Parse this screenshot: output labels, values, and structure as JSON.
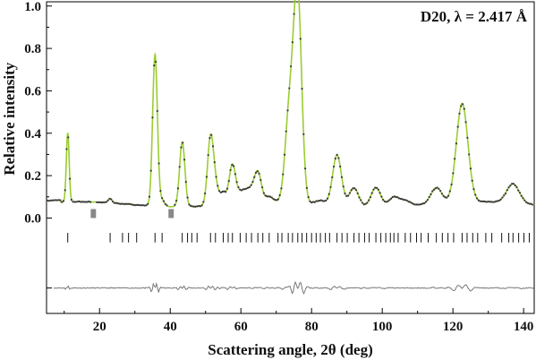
{
  "chart_data": {
    "type": "line",
    "title": "",
    "annotation": "D20, λ = 2.417 Å",
    "xlabel": "Scattering angle, 2θ (deg)",
    "ylabel": "Relative intensity",
    "xlim": [
      5,
      143
    ],
    "ylim": [
      -0.45,
      1.02
    ],
    "xticks": [
      20,
      40,
      60,
      80,
      100,
      120,
      140
    ],
    "yticks": [
      0.0,
      0.2,
      0.4,
      0.6,
      0.8,
      1.0
    ],
    "ytick_labels": [
      "0.0",
      "0.2",
      "0.4",
      "0.6",
      "0.8",
      "1.0"
    ],
    "grid": false,
    "background_level": 0.065,
    "difference_offset": -0.33,
    "excluded_regions": [
      [
        17.5,
        19.0
      ],
      [
        39.5,
        41.0
      ]
    ],
    "peaks": [
      {
        "x": 11.0,
        "y": 0.39
      },
      {
        "x": 23.0,
        "y": 0.085
      },
      {
        "x": 35.7,
        "y": 0.78
      },
      {
        "x": 37.7,
        "y": 0.095
      },
      {
        "x": 43.4,
        "y": 0.37
      },
      {
        "x": 51.4,
        "y": 0.38
      },
      {
        "x": 52.8,
        "y": 0.145
      },
      {
        "x": 55.0,
        "y": 0.12
      },
      {
        "x": 57.6,
        "y": 0.25
      },
      {
        "x": 59.8,
        "y": 0.11
      },
      {
        "x": 61.5,
        "y": 0.11
      },
      {
        "x": 63.0,
        "y": 0.11
      },
      {
        "x": 64.8,
        "y": 0.205
      },
      {
        "x": 68.0,
        "y": 0.09
      },
      {
        "x": 73.4,
        "y": 0.37
      },
      {
        "x": 74.6,
        "y": 0.27
      },
      {
        "x": 76.1,
        "y": 1.0
      },
      {
        "x": 82.5,
        "y": 0.08
      },
      {
        "x": 87.2,
        "y": 0.3
      },
      {
        "x": 92.0,
        "y": 0.15
      },
      {
        "x": 98.2,
        "y": 0.155
      },
      {
        "x": 103.3,
        "y": 0.11
      },
      {
        "x": 106.5,
        "y": 0.09
      },
      {
        "x": 115.3,
        "y": 0.14
      },
      {
        "x": 122.6,
        "y": 0.53
      },
      {
        "x": 137.0,
        "y": 0.155
      }
    ],
    "bragg_positions": [
      11.0,
      23.0,
      26.5,
      28.2,
      30.5,
      35.7,
      37.7,
      43.4,
      44.9,
      46.1,
      47.6,
      51.4,
      52.8,
      55.0,
      56.4,
      57.6,
      59.8,
      61.5,
      63.0,
      64.8,
      66.2,
      68.0,
      70.5,
      71.6,
      73.4,
      74.6,
      76.1,
      77.3,
      78.6,
      80.0,
      81.3,
      82.5,
      83.9,
      85.1,
      87.2,
      88.6,
      90.1,
      92.0,
      93.4,
      95.0,
      96.3,
      98.2,
      99.6,
      101.0,
      102.3,
      103.3,
      104.5,
      106.5,
      108.0,
      109.7,
      111.0,
      113.0,
      115.3,
      117.0,
      118.6,
      120.2,
      122.6,
      124.0,
      125.6,
      127.0,
      129.3,
      131.0,
      133.8,
      135.8,
      137.0,
      138.6,
      140.1,
      141.6
    ],
    "series": [
      {
        "name": "",
        "values": "observed",
        "color": "#3a3a3a"
      },
      {
        "name": "",
        "values": "calculated",
        "color": "#9acd32"
      },
      {
        "name": "",
        "values": "difference",
        "color": "#777777"
      }
    ]
  }
}
